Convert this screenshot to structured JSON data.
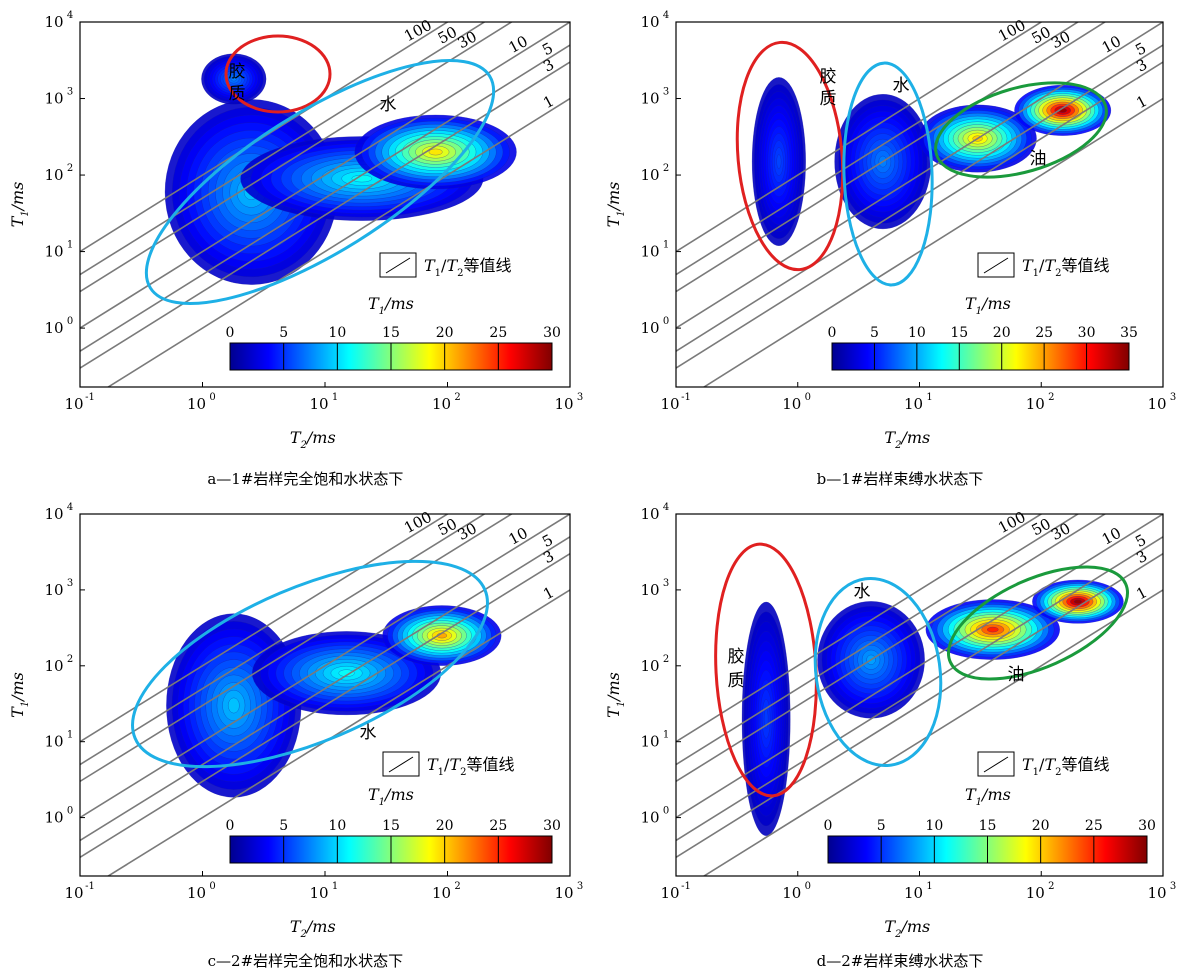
{
  "chart_data": [
    {
      "type": "heatmap",
      "caption": "a—1#岩样完全饱和水状态下",
      "xaxis": {
        "label": "T2/ms",
        "scale": "log",
        "range": [
          0.1,
          1000
        ],
        "ticks": [
          0.1,
          1,
          10,
          100,
          1000
        ]
      },
      "yaxis": {
        "label": "T1/ms",
        "scale": "log",
        "range": [
          0.17,
          10000
        ],
        "ticks": [
          1,
          10,
          100,
          1000,
          10000
        ]
      },
      "iso_lines": [
        "100",
        "50",
        "30",
        "10",
        "5",
        "3",
        "1"
      ],
      "legend": {
        "text": "T1/T2等值线",
        "sub": "T1/ms"
      },
      "colorbar": {
        "ticks": [
          "0",
          "5",
          "10",
          "15",
          "20",
          "25",
          "30"
        ],
        "max": 30
      },
      "regions": [
        {
          "label": "胶质",
          "color": "#e02020"
        },
        {
          "label": "水",
          "color": "#1eb0e6"
        }
      ],
      "blobs": [
        {
          "x": 2.5,
          "y": 60,
          "sx": 0.32,
          "sy": 0.55,
          "peak": 8
        },
        {
          "x": 20,
          "y": 90,
          "sx": 0.45,
          "sy": 0.25,
          "peak": 10
        },
        {
          "x": 80,
          "y": 200,
          "sx": 0.3,
          "sy": 0.22,
          "peak": 18
        },
        {
          "x": 1.8,
          "y": 1800,
          "sx": 0.12,
          "sy": 0.15,
          "peak": 6
        }
      ]
    },
    {
      "type": "heatmap",
      "caption": "b—1#岩样束缚水状态下",
      "xaxis": {
        "label": "T2/ms",
        "scale": "log",
        "range": [
          0.1,
          1000
        ],
        "ticks": [
          0.1,
          1,
          10,
          100,
          1000
        ]
      },
      "yaxis": {
        "label": "T1/ms",
        "scale": "log",
        "range": [
          0.17,
          10000
        ],
        "ticks": [
          1,
          10,
          100,
          1000,
          10000
        ]
      },
      "iso_lines": [
        "100",
        "50",
        "30",
        "10",
        "5",
        "3",
        "1"
      ],
      "legend": {
        "text": "T1/T2等值线",
        "sub": "T1/ms"
      },
      "colorbar": {
        "ticks": [
          "0",
          "5",
          "10",
          "15",
          "20",
          "25",
          "30",
          "35"
        ],
        "max": 35
      },
      "regions": [
        {
          "label": "胶质",
          "color": "#e02020"
        },
        {
          "label": "水",
          "color": "#1eb0e6"
        },
        {
          "label": "油",
          "color": "#1a9a3c"
        }
      ],
      "blobs": [
        {
          "x": 0.7,
          "y": 150,
          "sx": 0.1,
          "sy": 0.5,
          "peak": 5
        },
        {
          "x": 5,
          "y": 150,
          "sx": 0.18,
          "sy": 0.4,
          "peak": 7
        },
        {
          "x": 30,
          "y": 300,
          "sx": 0.22,
          "sy": 0.2,
          "peak": 22
        },
        {
          "x": 150,
          "y": 700,
          "sx": 0.18,
          "sy": 0.15,
          "peak": 33
        }
      ]
    },
    {
      "type": "heatmap",
      "caption": "c—2#岩样完全饱和水状态下",
      "xaxis": {
        "label": "T2/ms",
        "scale": "log",
        "range": [
          0.1,
          1000
        ],
        "ticks": [
          0.1,
          1,
          10,
          100,
          1000
        ]
      },
      "yaxis": {
        "label": "T1/ms",
        "scale": "log",
        "range": [
          0.17,
          10000
        ],
        "ticks": [
          1,
          10,
          100,
          1000,
          10000
        ]
      },
      "iso_lines": [
        "100",
        "50",
        "30",
        "10",
        "5",
        "3",
        "1"
      ],
      "legend": {
        "text": "T1/T2等值线",
        "sub": "T1/ms"
      },
      "colorbar": {
        "ticks": [
          "0",
          "5",
          "10",
          "15",
          "20",
          "25",
          "30"
        ],
        "max": 30
      },
      "regions": [
        {
          "label": "水",
          "color": "#1eb0e6"
        }
      ],
      "blobs": [
        {
          "x": 1.8,
          "y": 30,
          "sx": 0.25,
          "sy": 0.55,
          "peak": 8
        },
        {
          "x": 15,
          "y": 80,
          "sx": 0.35,
          "sy": 0.25,
          "peak": 10
        },
        {
          "x": 90,
          "y": 250,
          "sx": 0.22,
          "sy": 0.18,
          "peak": 20
        }
      ]
    },
    {
      "type": "heatmap",
      "caption": "d—2#岩样束缚水状态下",
      "xaxis": {
        "label": "T2/ms",
        "scale": "log",
        "range": [
          0.1,
          1000
        ],
        "ticks": [
          0.1,
          1,
          10,
          100,
          1000
        ]
      },
      "yaxis": {
        "label": "T1/ms",
        "scale": "log",
        "range": [
          0.17,
          10000
        ],
        "ticks": [
          1,
          10,
          100,
          1000,
          10000
        ]
      },
      "iso_lines": [
        "100",
        "50",
        "30",
        "10",
        "5",
        "3",
        "1"
      ],
      "legend": {
        "text": "T1/T2等值线",
        "sub": "T1/ms"
      },
      "colorbar": {
        "ticks": [
          "0",
          "5",
          "10",
          "15",
          "20",
          "25",
          "30"
        ],
        "max": 30
      },
      "regions": [
        {
          "label": "胶质",
          "color": "#e02020"
        },
        {
          "label": "水",
          "color": "#1eb0e6"
        },
        {
          "label": "油",
          "color": "#1a9a3c"
        }
      ],
      "blobs": [
        {
          "x": 0.55,
          "y": 20,
          "sx": 0.09,
          "sy": 0.7,
          "peak": 4
        },
        {
          "x": 4,
          "y": 120,
          "sx": 0.2,
          "sy": 0.35,
          "peak": 7
        },
        {
          "x": 40,
          "y": 300,
          "sx": 0.25,
          "sy": 0.18,
          "peak": 24
        },
        {
          "x": 200,
          "y": 700,
          "sx": 0.17,
          "sy": 0.13,
          "peak": 29
        }
      ]
    }
  ]
}
